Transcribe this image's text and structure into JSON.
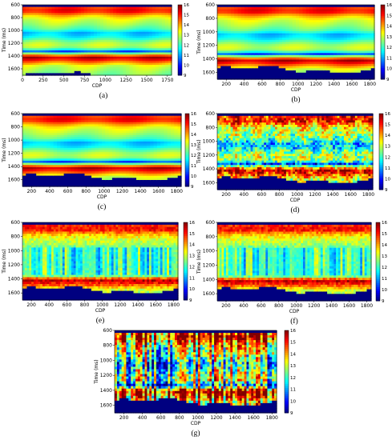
{
  "chart_data": [
    {
      "type": "heatmap",
      "caption": "(a)",
      "xlabel": "CDP",
      "ylabel": "Time (ms)",
      "xlim": [
        0,
        1800
      ],
      "ylim": [
        600,
        1700
      ],
      "x_ticks": [
        0,
        250,
        500,
        750,
        1000,
        1250,
        1500,
        1750
      ],
      "y_ticks": [
        600,
        800,
        1000,
        1200,
        1400,
        1600
      ],
      "colorbar": {
        "min": 9,
        "max": 16,
        "ticks": [
          9,
          10,
          11,
          12,
          13,
          14,
          15,
          16
        ]
      },
      "pattern": "smooth",
      "base_ms": 1700
    },
    {
      "type": "heatmap",
      "caption": "(b)",
      "xlabel": "CDP",
      "ylabel": "Time (ms)",
      "xlim": [
        100,
        1850
      ],
      "ylim": [
        600,
        1700
      ],
      "x_ticks": [
        200,
        400,
        600,
        800,
        1000,
        1200,
        1400,
        1600,
        1800
      ],
      "y_ticks": [
        600,
        800,
        1000,
        1200,
        1400,
        1600
      ],
      "colorbar": {
        "min": 9,
        "max": 16,
        "ticks": [
          9,
          10,
          11,
          12,
          13,
          14,
          15,
          16
        ]
      },
      "pattern": "smooth",
      "base_ms": 1560
    },
    {
      "type": "heatmap",
      "caption": "(c)",
      "xlabel": "CDP",
      "ylabel": "Time (ms)",
      "xlim": [
        100,
        1850
      ],
      "ylim": [
        600,
        1700
      ],
      "x_ticks": [
        200,
        400,
        600,
        800,
        1000,
        1200,
        1400,
        1600,
        1800
      ],
      "y_ticks": [
        600,
        800,
        1000,
        1200,
        1400,
        1600
      ],
      "colorbar": {
        "min": 9,
        "max": 16,
        "ticks": [
          9,
          10,
          11,
          12,
          13,
          14,
          15,
          16
        ]
      },
      "pattern": "smooth",
      "base_ms": 1560
    },
    {
      "type": "heatmap",
      "caption": "(d)",
      "xlabel": "CDP",
      "ylabel": "Time (ms)",
      "xlim": [
        100,
        1850
      ],
      "ylim": [
        600,
        1700
      ],
      "x_ticks": [
        200,
        400,
        600,
        800,
        1000,
        1200,
        1400,
        1600,
        1800
      ],
      "y_ticks": [
        600,
        800,
        1000,
        1200,
        1400,
        1600
      ],
      "colorbar": {
        "min": 9,
        "max": 16,
        "ticks": [
          9,
          10,
          11,
          12,
          13,
          14,
          15,
          16
        ]
      },
      "pattern": "noisy",
      "base_ms": 1560
    },
    {
      "type": "heatmap",
      "caption": "(e)",
      "xlabel": "CDP",
      "ylabel": "Time (ms)",
      "xlim": [
        100,
        1850
      ],
      "ylim": [
        600,
        1700
      ],
      "x_ticks": [
        200,
        400,
        600,
        800,
        1000,
        1200,
        1400,
        1600,
        1800
      ],
      "y_ticks": [
        600,
        800,
        1000,
        1200,
        1400,
        1600
      ],
      "colorbar": {
        "min": 9,
        "max": 16,
        "ticks": [
          9,
          10,
          11,
          12,
          13,
          14,
          15,
          16
        ]
      },
      "pattern": "columns",
      "base_ms": 1560
    },
    {
      "type": "heatmap",
      "caption": "(f)",
      "xlabel": "CDP",
      "ylabel": "Time (ms)",
      "xlim": [
        100,
        1850
      ],
      "ylim": [
        600,
        1700
      ],
      "x_ticks": [
        200,
        400,
        600,
        800,
        1000,
        1200,
        1400,
        1600,
        1800
      ],
      "y_ticks": [
        600,
        800,
        1000,
        1200,
        1400,
        1600
      ],
      "colorbar": {
        "min": 9,
        "max": 16,
        "ticks": [
          9,
          10,
          11,
          12,
          13,
          14,
          15,
          16
        ]
      },
      "pattern": "columns",
      "base_ms": 1560
    },
    {
      "type": "heatmap",
      "caption": "(g)",
      "xlabel": "CDP",
      "ylabel": "Time (ms)",
      "xlim": [
        100,
        1850
      ],
      "ylim": [
        600,
        1700
      ],
      "x_ticks": [
        200,
        400,
        600,
        800,
        1000,
        1200,
        1400,
        1600,
        1800
      ],
      "y_ticks": [
        600,
        800,
        1000,
        1200,
        1400,
        1600
      ],
      "colorbar": {
        "min": 9,
        "max": 16,
        "ticks": [
          9,
          10,
          11,
          12,
          13,
          14,
          15,
          16
        ]
      },
      "pattern": "chaotic",
      "base_ms": 1560
    }
  ]
}
